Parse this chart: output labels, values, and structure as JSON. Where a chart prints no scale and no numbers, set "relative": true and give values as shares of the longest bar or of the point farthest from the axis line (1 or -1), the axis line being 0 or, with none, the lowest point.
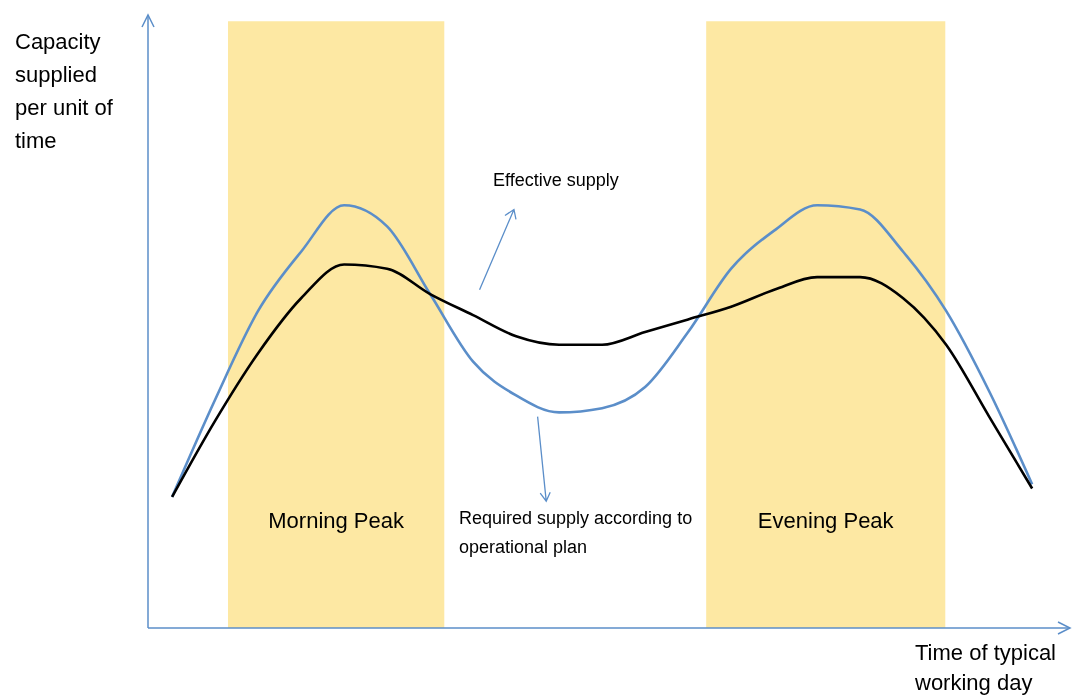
{
  "chart_data": {
    "type": "line",
    "relative": true,
    "xlabel": "Time of typical working day",
    "ylabel": "Capacity supplied per unit of time",
    "categories": [
      null,
      null,
      null,
      null,
      null,
      null,
      null,
      null,
      null,
      null,
      null,
      null,
      null,
      null,
      null,
      null,
      null,
      null,
      null,
      null,
      null
    ],
    "series": [
      {
        "name": "Required supply according to operational plan",
        "color": "#5b8ec9",
        "values": [
          0.31,
          0.54,
          0.75,
          0.89,
          1.0,
          0.95,
          0.79,
          0.63,
          0.55,
          0.51,
          0.52,
          0.57,
          0.7,
          0.85,
          0.94,
          1.0,
          0.99,
          0.89,
          0.75,
          0.56,
          0.34
        ]
      },
      {
        "name": "Effective supply",
        "color": "#000000",
        "values": [
          0.31,
          0.49,
          0.65,
          0.78,
          0.86,
          0.85,
          0.79,
          0.74,
          0.69,
          0.67,
          0.67,
          0.7,
          0.73,
          0.76,
          0.8,
          0.83,
          0.83,
          0.78,
          0.67,
          0.5,
          0.33
        ]
      }
    ],
    "annotations": [
      "Morning Peak",
      "Evening Peak"
    ],
    "marker": "none",
    "line_style": "solid"
  }
}
